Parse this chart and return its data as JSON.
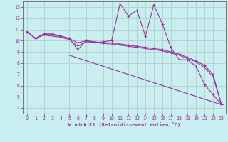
{
  "background_color": "#c8eef0",
  "grid_color": "#b0c8c8",
  "line_color": "#993399",
  "marker": "+",
  "xlabel": "Windchill (Refroidissement éolien,°C)",
  "xlim": [
    -0.5,
    23.5
  ],
  "ylim": [
    3.5,
    13.5
  ],
  "yticks": [
    4,
    5,
    6,
    7,
    8,
    9,
    10,
    11,
    12,
    13
  ],
  "xticks": [
    0,
    1,
    2,
    3,
    4,
    5,
    6,
    7,
    8,
    9,
    10,
    11,
    12,
    13,
    14,
    15,
    16,
    17,
    18,
    19,
    20,
    21,
    22,
    23
  ],
  "series": [
    {
      "x": [
        0,
        1,
        2,
        3,
        4,
        5,
        6,
        7,
        8,
        9,
        10,
        11,
        12,
        13,
        14,
        15,
        16,
        17,
        18,
        19,
        20,
        21,
        22,
        23
      ],
      "y": [
        10.8,
        10.2,
        10.6,
        10.6,
        10.4,
        10.2,
        9.2,
        10.0,
        9.8,
        9.9,
        10.0,
        13.3,
        12.2,
        12.7,
        10.4,
        13.2,
        11.5,
        9.4,
        8.3,
        8.3,
        7.7,
        6.1,
        5.2,
        4.3
      ],
      "has_marker": true
    },
    {
      "x": [
        0,
        1,
        2,
        3,
        4,
        5,
        6,
        7,
        8,
        9,
        10,
        11,
        12,
        13,
        14,
        15,
        16,
        17,
        18,
        19,
        20,
        21,
        22,
        23
      ],
      "y": [
        10.8,
        10.2,
        10.6,
        10.5,
        10.4,
        10.2,
        9.8,
        10.0,
        9.9,
        9.8,
        9.8,
        9.7,
        9.6,
        9.5,
        9.4,
        9.3,
        9.2,
        9.0,
        8.8,
        8.5,
        8.2,
        7.8,
        7.0,
        4.3
      ],
      "has_marker": true
    },
    {
      "x": [
        0,
        1,
        2,
        3,
        4,
        5,
        6,
        7,
        8,
        9,
        10,
        11,
        12,
        13,
        14,
        15,
        16,
        17,
        18,
        19,
        20,
        21,
        22,
        23
      ],
      "y": [
        10.8,
        10.2,
        10.5,
        10.4,
        10.3,
        10.1,
        9.5,
        9.9,
        9.85,
        9.75,
        9.7,
        9.6,
        9.5,
        9.4,
        9.3,
        9.2,
        9.1,
        8.9,
        8.7,
        8.4,
        8.1,
        7.6,
        6.8,
        4.3
      ],
      "has_marker": false
    },
    {
      "x": [
        5,
        23
      ],
      "y": [
        8.7,
        4.3
      ],
      "has_marker": false
    }
  ]
}
